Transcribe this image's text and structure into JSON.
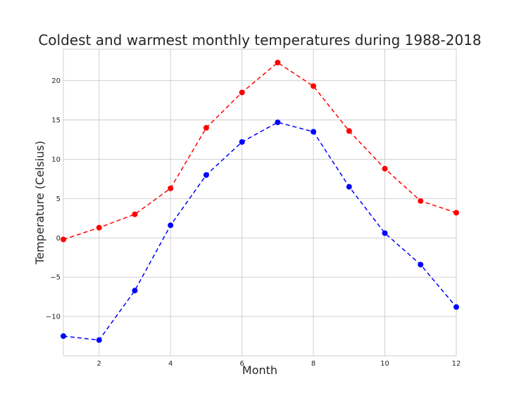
{
  "chart_data": {
    "type": "line",
    "title": "Coldest and warmest monthly temperatures during 1988-2018",
    "xlabel": "Month",
    "ylabel": "Temperature (Celsius)",
    "xlim": [
      1,
      12
    ],
    "ylim": [
      -15,
      24
    ],
    "x_ticks": [
      2,
      4,
      6,
      8,
      10,
      12
    ],
    "y_ticks": [
      -10,
      -5,
      0,
      5,
      10,
      15,
      20
    ],
    "y_tick_labels": [
      "−10",
      "−5",
      "0",
      "5",
      "10",
      "15",
      "20"
    ],
    "grid": true,
    "x": [
      1,
      2,
      3,
      4,
      5,
      6,
      7,
      8,
      9,
      10,
      11,
      12
    ],
    "series": [
      {
        "color": "#ff0000",
        "values": [
          -0.2,
          1.3,
          3.0,
          6.3,
          14.0,
          18.5,
          22.3,
          19.3,
          13.6,
          8.8,
          4.7,
          3.2
        ]
      },
      {
        "color": "#0000ff",
        "values": [
          -12.5,
          -13.0,
          -6.7,
          1.6,
          8.0,
          12.2,
          14.7,
          13.5,
          6.5,
          0.6,
          -3.4,
          -8.8
        ]
      }
    ]
  }
}
